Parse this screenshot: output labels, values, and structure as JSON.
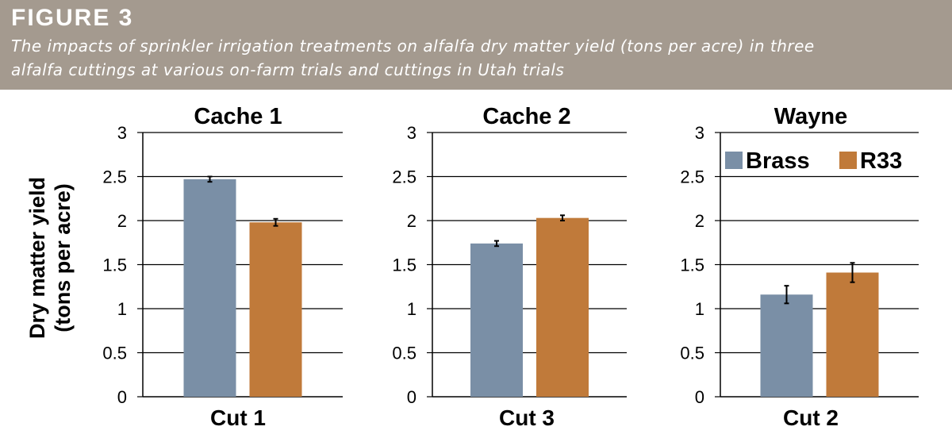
{
  "figure": {
    "label": "FIGURE 3",
    "caption_line1": "The impacts of sprinkler irrigation treatments on alfalfa dry matter yield (tons per acre) in three",
    "caption_line2": "alfalfa cuttings at various on-farm trials and cuttings in Utah trials"
  },
  "y_axis_label_line1": "Dry matter yield",
  "y_axis_label_line2": "(tons per acre)",
  "colors": {
    "Brass": "#7a8fa6",
    "R33": "#c07a3a",
    "banner": "#a49a8f"
  },
  "legend": [
    "Brass",
    "R33"
  ],
  "chart_data": [
    {
      "type": "bar",
      "title": "Cache 1",
      "categories": [
        "Cut 1"
      ],
      "series": [
        {
          "name": "Brass",
          "values": [
            2.47
          ],
          "error": [
            0.03
          ]
        },
        {
          "name": "R33",
          "values": [
            1.98
          ],
          "error": [
            0.04
          ]
        }
      ],
      "ylim": [
        0,
        3
      ],
      "yticks": [
        "0",
        "0.5",
        "1",
        "1.5",
        "2",
        "2.5",
        "3"
      ],
      "xlabel": "Cut 1",
      "ylabel": "Dry matter yield (tons per acre)",
      "grid": true
    },
    {
      "type": "bar",
      "title": "Cache 2",
      "categories": [
        "Cut 3"
      ],
      "series": [
        {
          "name": "Brass",
          "values": [
            1.74
          ],
          "error": [
            0.03
          ]
        },
        {
          "name": "R33",
          "values": [
            2.03
          ],
          "error": [
            0.03
          ]
        }
      ],
      "ylim": [
        0,
        3
      ],
      "yticks": [
        "0",
        "0.5",
        "1",
        "1.5",
        "2",
        "2.5",
        "3"
      ],
      "xlabel": "Cut 3",
      "grid": true
    },
    {
      "type": "bar",
      "title": "Wayne",
      "categories": [
        "Cut 2"
      ],
      "series": [
        {
          "name": "Brass",
          "values": [
            1.16
          ],
          "error": [
            0.1
          ]
        },
        {
          "name": "R33",
          "values": [
            1.41
          ],
          "error": [
            0.11
          ]
        }
      ],
      "ylim": [
        0,
        3
      ],
      "yticks": [
        "0",
        "0.5",
        "1",
        "1.5",
        "2",
        "2.5",
        "3"
      ],
      "xlabel": "Cut 2",
      "grid": true,
      "legend_position": "top"
    }
  ]
}
